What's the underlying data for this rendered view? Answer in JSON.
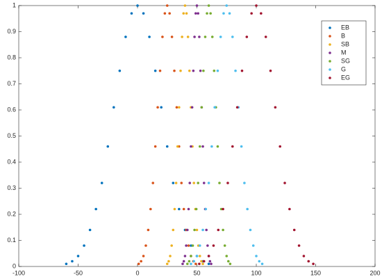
{
  "chart_data": {
    "type": "scatter",
    "xlim": [
      -100,
      200
    ],
    "xticks": [
      -100,
      -50,
      0,
      50,
      100,
      150,
      200
    ],
    "ylim": [
      0,
      1
    ],
    "yticks": [
      0,
      0.1,
      0.2,
      0.3,
      0.4,
      0.5,
      0.6,
      0.7,
      0.8,
      0.9,
      1
    ],
    "legend": "northeast",
    "series": [
      {
        "name": "EB",
        "color": "#0072BD",
        "x": [
          -60,
          -55,
          -50,
          -45,
          -40,
          -35,
          -30,
          -25,
          -20,
          -15,
          -10,
          -5,
          0,
          5,
          10,
          15,
          20,
          25,
          30,
          35,
          40,
          45,
          50,
          55,
          60
        ],
        "values": [
          0.01,
          0.02,
          0.04,
          0.08,
          0.14,
          0.22,
          0.32,
          0.46,
          0.61,
          0.75,
          0.88,
          0.97,
          1,
          0.97,
          0.88,
          0.75,
          0.61,
          0.46,
          0.32,
          0.22,
          0.14,
          0.08,
          0.04,
          0.02,
          0.01
        ]
      },
      {
        "name": "B",
        "color": "#D95319",
        "x": [
          1,
          3,
          5,
          7,
          9,
          11,
          13,
          15,
          17,
          19,
          21,
          23,
          25,
          27,
          29,
          31,
          33,
          35,
          37,
          39,
          41,
          43,
          45,
          47,
          49
        ],
        "values": [
          0.01,
          0.02,
          0.04,
          0.08,
          0.14,
          0.22,
          0.32,
          0.46,
          0.61,
          0.75,
          0.88,
          0.97,
          1,
          0.97,
          0.88,
          0.75,
          0.61,
          0.46,
          0.32,
          0.22,
          0.14,
          0.08,
          0.04,
          0.02,
          0.01
        ]
      },
      {
        "name": "SB",
        "color": "#EDB120",
        "x": [
          25,
          26.25,
          27.5,
          28.75,
          30,
          31.25,
          32.5,
          33.75,
          35,
          36.25,
          37.5,
          38.75,
          40,
          41.25,
          42.5,
          43.75,
          45,
          46.25,
          47.5,
          48.75,
          50,
          51.25,
          52.5,
          53.75,
          55
        ],
        "values": [
          0.01,
          0.02,
          0.04,
          0.08,
          0.14,
          0.22,
          0.32,
          0.46,
          0.61,
          0.75,
          0.88,
          0.97,
          1,
          0.97,
          0.88,
          0.75,
          0.61,
          0.46,
          0.32,
          0.22,
          0.14,
          0.08,
          0.04,
          0.02,
          0.01
        ]
      },
      {
        "name": "M",
        "color": "#7E2F8E",
        "x": [
          38,
          39,
          40,
          41,
          42,
          43,
          44,
          45,
          46,
          47,
          48,
          49,
          50,
          51,
          52,
          53,
          54,
          55,
          56,
          57,
          58,
          59,
          60,
          61,
          62
        ],
        "values": [
          0.01,
          0.02,
          0.04,
          0.08,
          0.14,
          0.22,
          0.32,
          0.46,
          0.61,
          0.75,
          0.88,
          0.97,
          1,
          0.97,
          0.88,
          0.75,
          0.61,
          0.46,
          0.32,
          0.22,
          0.14,
          0.08,
          0.04,
          0.02,
          0.01
        ]
      },
      {
        "name": "SG",
        "color": "#77AC30",
        "x": [
          42,
          43.5,
          45,
          46.5,
          48,
          49.5,
          51,
          52.5,
          54,
          55.5,
          57,
          58.5,
          60,
          61.5,
          63,
          64.5,
          66,
          67.5,
          69,
          70.5,
          72,
          73.5,
          75,
          76.5,
          78
        ],
        "values": [
          0.01,
          0.02,
          0.04,
          0.08,
          0.14,
          0.22,
          0.32,
          0.46,
          0.61,
          0.75,
          0.88,
          0.97,
          1,
          0.97,
          0.88,
          0.75,
          0.61,
          0.46,
          0.32,
          0.22,
          0.14,
          0.08,
          0.04,
          0.02,
          0.01
        ]
      },
      {
        "name": "G",
        "color": "#4DBEEE",
        "x": [
          45,
          47.5,
          50,
          52.5,
          55,
          57.5,
          60,
          62.5,
          65,
          67.5,
          70,
          72.5,
          75,
          77.5,
          80,
          82.5,
          85,
          87.5,
          90,
          92.5,
          95,
          97.5,
          100,
          102.5,
          105
        ],
        "values": [
          0.01,
          0.02,
          0.04,
          0.08,
          0.14,
          0.22,
          0.32,
          0.46,
          0.61,
          0.75,
          0.88,
          0.97,
          1,
          0.97,
          0.88,
          0.75,
          0.61,
          0.46,
          0.32,
          0.22,
          0.14,
          0.08,
          0.04,
          0.02,
          0.01
        ]
      },
      {
        "name": "EG",
        "color": "#A2142F",
        "x": [
          52,
          56,
          60,
          64,
          68,
          72,
          76,
          80,
          84,
          88,
          92,
          96,
          100,
          104,
          108,
          112,
          116,
          120,
          124,
          128,
          132,
          136,
          140,
          144,
          148
        ],
        "values": [
          0.01,
          0.02,
          0.04,
          0.08,
          0.14,
          0.22,
          0.32,
          0.46,
          0.61,
          0.75,
          0.88,
          0.97,
          1,
          0.97,
          0.88,
          0.75,
          0.61,
          0.46,
          0.32,
          0.22,
          0.14,
          0.08,
          0.04,
          0.02,
          0.01
        ]
      }
    ]
  }
}
